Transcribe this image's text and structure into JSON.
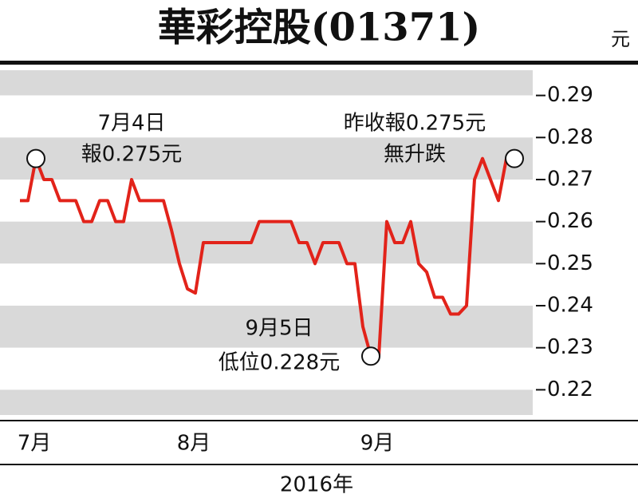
{
  "chart_data": {
    "type": "line",
    "title": "華彩控股(01371)",
    "y_unit": "元",
    "x_label": "2016年",
    "categories": [
      null,
      "7月",
      null,
      null,
      null,
      null,
      null,
      null,
      null,
      null,
      null,
      null,
      null,
      null,
      null,
      null,
      null,
      null,
      null,
      null,
      null,
      "8月",
      null,
      null,
      null,
      null,
      null,
      null,
      null,
      null,
      null,
      null,
      null,
      null,
      null,
      null,
      null,
      null,
      null,
      null,
      null,
      null,
      null,
      null,
      "9月",
      null,
      null,
      null,
      null,
      null,
      null,
      null,
      null,
      null,
      null,
      null,
      null,
      null,
      null,
      null,
      null,
      null,
      null
    ],
    "series": [
      {
        "color": "#e2231a",
        "values": [
          0.265,
          0.265,
          0.275,
          0.27,
          0.27,
          0.265,
          0.265,
          0.265,
          0.26,
          0.26,
          0.265,
          0.265,
          0.26,
          0.26,
          0.27,
          0.265,
          0.265,
          0.265,
          0.265,
          0.258,
          0.25,
          0.244,
          0.243,
          0.255,
          0.255,
          0.255,
          0.255,
          0.255,
          0.255,
          0.255,
          0.26,
          0.26,
          0.26,
          0.26,
          0.26,
          0.255,
          0.255,
          0.25,
          0.255,
          0.255,
          0.255,
          0.25,
          0.25,
          0.235,
          0.228,
          0.228,
          0.26,
          0.255,
          0.255,
          0.26,
          0.25,
          0.248,
          0.242,
          0.242,
          0.238,
          0.238,
          0.24,
          0.27,
          0.275,
          0.27,
          0.265,
          0.275,
          0.275
        ]
      }
    ],
    "ylim": [
      0.214,
      0.296
    ],
    "yticks": [
      0.29,
      0.28,
      0.27,
      0.26,
      0.25,
      0.24,
      0.23,
      0.22
    ],
    "annotations": [
      [
        "7月4日",
        "報0.275元"
      ],
      [
        "昨收報0.275元",
        "無升跌"
      ],
      [
        "9月5日",
        "低位0.228元"
      ]
    ]
  }
}
